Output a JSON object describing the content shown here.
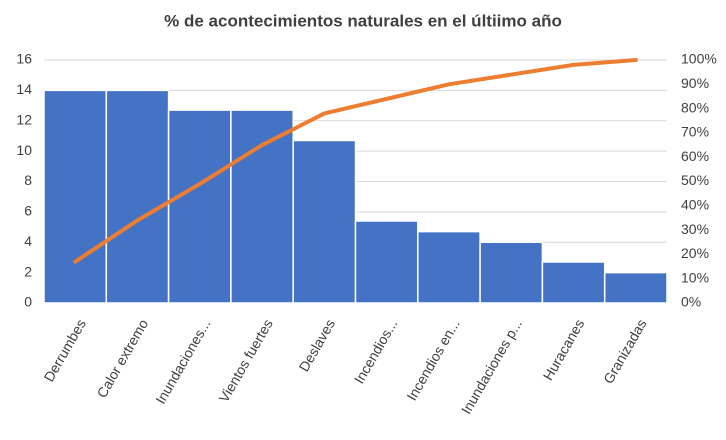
{
  "chart_data": {
    "type": "pareto",
    "title": "% de acontecimientos naturales en el últiimo año",
    "categories": [
      "Derrumbes",
      "Calor extremo",
      "Inundaciones...",
      "Vientos fuertes",
      "Deslaves",
      "Incendios...",
      "Incendios en...",
      "Inundaciones p...",
      "Huracanes",
      "Granizadas"
    ],
    "series": [
      {
        "type": "bar",
        "color": "#4472c4",
        "values": [
          14,
          14,
          12.7,
          12.7,
          10.7,
          5.4,
          4.7,
          4.0,
          2.7,
          2.0
        ]
      },
      {
        "type": "line",
        "color": "#ed7d31",
        "axis": "y2",
        "values": [
          17,
          34,
          49,
          65,
          78,
          84,
          90,
          94,
          98,
          100
        ]
      }
    ],
    "ylim": [
      0,
      16
    ],
    "yticks": [
      0,
      2,
      4,
      6,
      8,
      10,
      12,
      14,
      16
    ],
    "y2lim": [
      0,
      100
    ],
    "y2ticks": [
      {
        "value": 0,
        "label": "0%"
      },
      {
        "value": 10,
        "label": "10%"
      },
      {
        "value": 20,
        "label": "20%"
      },
      {
        "value": 30,
        "label": "30%"
      },
      {
        "value": 40,
        "label": "40%"
      },
      {
        "value": 50,
        "label": "50%"
      },
      {
        "value": 60,
        "label": "60%"
      },
      {
        "value": 70,
        "label": "70%"
      },
      {
        "value": 80,
        "label": "80%"
      },
      {
        "value": 90,
        "label": "90%"
      },
      {
        "value": 100,
        "label": "100%"
      }
    ],
    "grid": true
  }
}
